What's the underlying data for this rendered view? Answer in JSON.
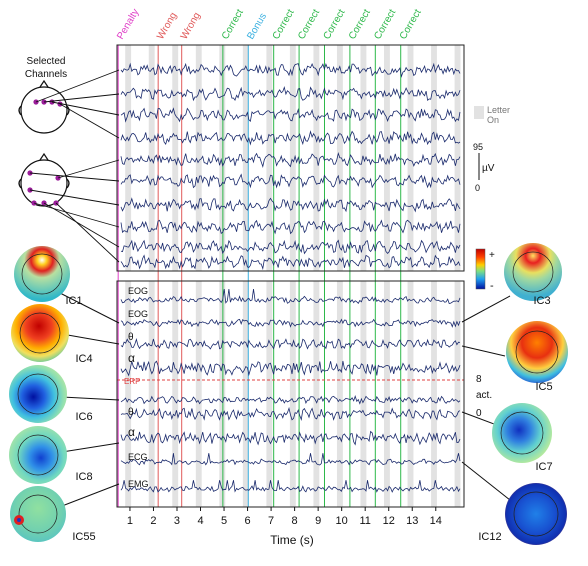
{
  "events": [
    {
      "label": "Penalty",
      "color": "#e040c8"
    },
    {
      "label": "Wrong",
      "color": "#e05a5a"
    },
    {
      "label": "Wrong",
      "color": "#e05a5a"
    },
    {
      "label": "Correct",
      "color": "#2db84a"
    },
    {
      "label": "Bonus",
      "color": "#3ab0e0"
    },
    {
      "label": "Correct",
      "color": "#2db84a"
    },
    {
      "label": "Correct",
      "color": "#2db84a"
    },
    {
      "label": "Correct",
      "color": "#2db84a"
    },
    {
      "label": "Correct",
      "color": "#2db84a"
    },
    {
      "label": "Correct",
      "color": "#2db84a"
    },
    {
      "label": "Correct",
      "color": "#2db84a"
    }
  ],
  "selected_channels_label": [
    "Selected",
    "Channels"
  ],
  "letter_on_label": [
    "Letter",
    "On"
  ],
  "scale": {
    "top": "95",
    "unit": "µV",
    "bottom": "0"
  },
  "colorbar": {
    "plus": "+",
    "minus": "-"
  },
  "act_scale": {
    "top": "8",
    "unit": "act.",
    "bottom": "0"
  },
  "component_labels": [
    "EOG",
    "EOG",
    "θ",
    "α",
    "ERP",
    "θ",
    "α",
    "ECG",
    "EMG"
  ],
  "x_ticks": [
    "1",
    "2",
    "3",
    "4",
    "5",
    "6",
    "7",
    "8",
    "9",
    "10",
    "11",
    "12",
    "13",
    "14"
  ],
  "x_axis_label": "Time (s)",
  "ic_labels_left": [
    "IC1",
    "IC4",
    "IC6",
    "IC8",
    "IC55"
  ],
  "ic_labels_right": [
    "IC3",
    "IC5",
    "IC7",
    "IC12"
  ],
  "colors": {
    "trace": "#1a2a6c",
    "erp": "#e04040",
    "letter_band": "#e2e2e2"
  }
}
